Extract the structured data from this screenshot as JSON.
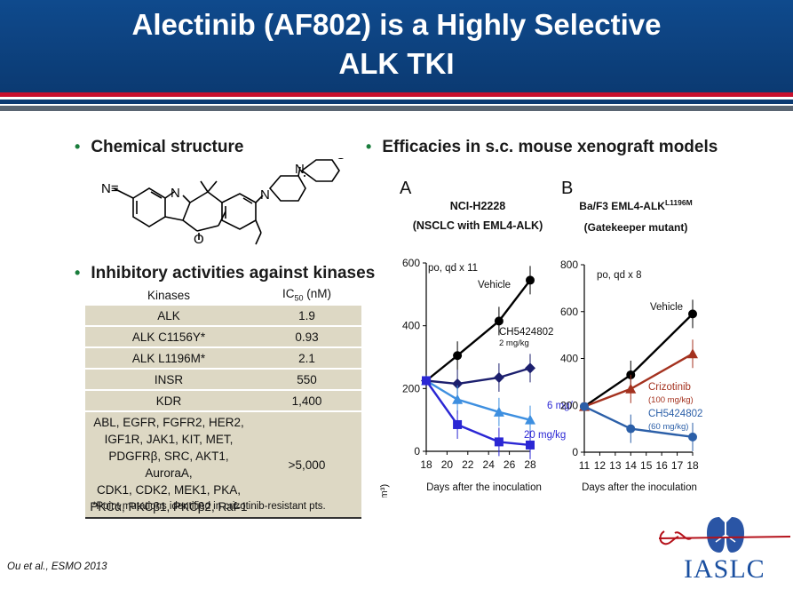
{
  "slide": {
    "title_line1": "Alectinib (AF802) is a Highly Selective",
    "title_line2": "ALK TKI",
    "bullet_structure": "Chemical structure",
    "bullet_inhibitory": "Inhibitory activities against kinases",
    "bullet_efficacy": "Efficacies in s.c. mouse xenograft models",
    "footnote": "*Point mutations identified in crizotinib-resistant pts.",
    "citation": "Ou et al., ESMO 2013",
    "logo_text": "IASLC",
    "colors": {
      "header": "#0f4a8d",
      "stripe_red": "#c8102e",
      "table_row": "#ddd8c4"
    }
  },
  "structure_labels": {
    "nitrile": "N≡",
    "n1": "N",
    "n2": "N",
    "n3": "N",
    "o1": "O",
    "o2": "O"
  },
  "kinase_table": {
    "header_kinases": "Kinases",
    "header_ic50_prefix": "IC",
    "header_ic50_sub": "50",
    "header_ic50_suffix": " (nM)",
    "rows": [
      {
        "kinase": "ALK",
        "ic50": "1.9"
      },
      {
        "kinase": "ALK C1156Y*",
        "ic50": "0.93"
      },
      {
        "kinase": "ALK L1196M*",
        "ic50": "2.1"
      },
      {
        "kinase": "INSR",
        "ic50": "550"
      },
      {
        "kinase": "KDR",
        "ic50": "1,400"
      }
    ],
    "last_row_lines": [
      "ABL, EGFR, FGFR2, HER2,",
      "IGF1R, JAK1, KIT, MET,",
      "PDGFRβ, SRC, AKT1, AuroraA,",
      "CDK1, CDK2, MEK1, PKA,",
      "PKCα, PKCβ1, PKCβ2, Raf-1"
    ],
    "last_row_ic50": ">5,000"
  },
  "chart_data": [
    {
      "type": "line",
      "panel_letter": "A",
      "title_line1": "NCI-H2228",
      "title_line2": "(NSCLC with EML4-ALK)",
      "dosing": "po, qd x 11",
      "xlabel": "Days after the inoculation",
      "ylabel": "Tumor volume (mm³)",
      "xlim": [
        18,
        28
      ],
      "ylim": [
        0,
        600
      ],
      "x_ticks": [
        18,
        20,
        22,
        24,
        26,
        28
      ],
      "y_ticks": [
        0,
        200,
        400,
        600
      ],
      "series": [
        {
          "label_lines": [
            "Vehicle"
          ],
          "color": "#000000",
          "marker": "circle",
          "x": [
            18,
            21,
            25,
            28
          ],
          "y": [
            225,
            305,
            415,
            545
          ]
        },
        {
          "label_lines": [
            "CH5424802",
            "2 mg/kg"
          ],
          "color": "#1c1f6e",
          "marker": "diamond",
          "x": [
            18,
            21,
            25,
            28
          ],
          "y": [
            225,
            215,
            235,
            265
          ]
        },
        {
          "label_lines": [
            "6 mg/kg"
          ],
          "color": "#3d8fe0",
          "marker": "triangle",
          "x": [
            18,
            21,
            25,
            28
          ],
          "y": [
            225,
            165,
            125,
            100
          ]
        },
        {
          "label_lines": [
            "20 mg/kg"
          ],
          "color": "#2b27d4",
          "marker": "square",
          "x": [
            18,
            21,
            25,
            28
          ],
          "y": [
            225,
            85,
            30,
            20
          ]
        }
      ]
    },
    {
      "type": "line",
      "panel_letter": "B",
      "title_line1_main": "Ba/F3 EML4-ALK",
      "title_line1_sup": "L1196M",
      "title_line2": "(Gatekeeper mutant)",
      "dosing": "po, qd x 8",
      "xlabel": "Days after the inoculation",
      "ylabel": "",
      "xlim": [
        11,
        18
      ],
      "ylim": [
        0,
        800
      ],
      "x_ticks": [
        11,
        12,
        13,
        14,
        15,
        16,
        17,
        18
      ],
      "y_ticks": [
        0,
        200,
        400,
        600,
        800
      ],
      "series": [
        {
          "label_lines": [
            "Vehicle"
          ],
          "color": "#000000",
          "marker": "circle",
          "x": [
            11,
            14,
            18
          ],
          "y": [
            195,
            330,
            590
          ]
        },
        {
          "label_lines": [
            "Crizotinib",
            "(100 mg/kg)"
          ],
          "color": "#a4321f",
          "marker": "triangle",
          "x": [
            11,
            14,
            18
          ],
          "y": [
            195,
            270,
            420
          ]
        },
        {
          "label_lines": [
            "CH5424802",
            "(60 mg/kg)"
          ],
          "color": "#2b5fa8",
          "marker": "circle",
          "x": [
            11,
            14,
            18
          ],
          "y": [
            195,
            100,
            65
          ]
        }
      ]
    }
  ]
}
